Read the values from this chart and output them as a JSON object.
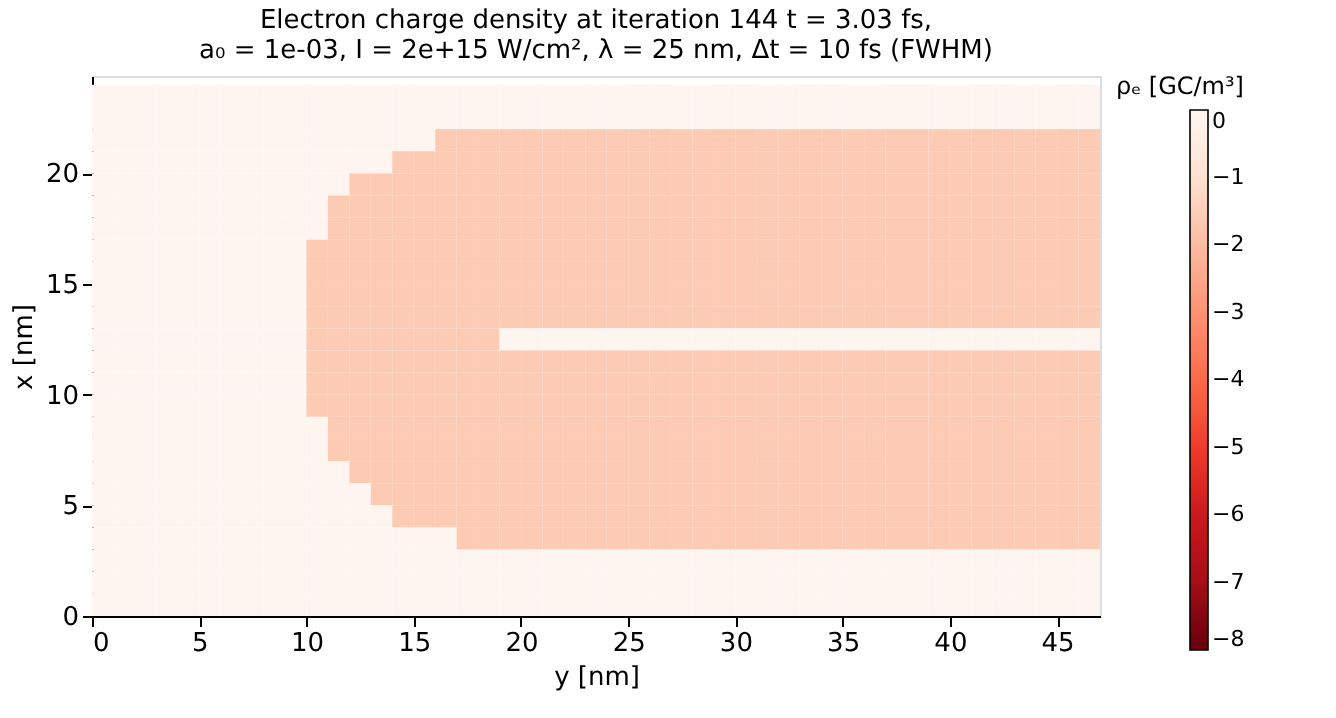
{
  "chart_data": {
    "type": "heatmap",
    "title": "Electron charge density at iteration 144 t = 3.03 fs,",
    "subtitle": "a₀ = 1e-03, I = 2e+15 W/cm², λ = 25 nm, Δt = 10 fs (FWHM)",
    "xlabel": "y [nm]",
    "ylabel": "x [nm]",
    "clabel": "ρₑ [GC/m³]",
    "xlim": [
      0,
      47
    ],
    "ylim": [
      0,
      24.4
    ],
    "xticks": [
      0,
      5,
      10,
      15,
      20,
      25,
      30,
      35,
      40,
      45
    ],
    "yticks": [
      0,
      5,
      10,
      15,
      20
    ],
    "clim": [
      -8,
      0
    ],
    "cticks": [
      -8,
      -7,
      -6,
      -5,
      -4,
      -3,
      -2,
      -1,
      0
    ],
    "grid": false,
    "x": [
      0.5,
      1.5,
      2.5,
      3.5,
      4.5,
      5.5,
      6.5,
      7.5,
      8.5,
      9.5,
      10.5,
      11.5,
      12.5,
      13.5,
      14.5,
      15.5,
      16.5,
      17.5,
      18.5,
      19.5,
      20.5,
      21.5,
      22.5,
      23.5,
      24.5,
      25.5,
      26.5,
      27.5,
      28.5,
      29.5,
      30.5,
      31.5,
      32.5,
      33.5,
      34.5,
      35.5,
      36.5,
      37.5,
      38.5,
      39.5,
      40.5,
      41.5,
      42.5,
      43.5,
      44.5,
      45.5,
      46.5
    ],
    "y": [
      23.5,
      22.5,
      21.5,
      20.5,
      19.5,
      18.5,
      17.5,
      16.5,
      15.5,
      14.5,
      13.5,
      12.5,
      11.5,
      10.5,
      9.5,
      8.5,
      7.5,
      6.5,
      5.5,
      4.5,
      3.5,
      2.5,
      1.5,
      0.5
    ],
    "cells": [
      [
        0,
        0,
        0,
        0,
        0,
        0,
        0,
        0,
        0,
        0,
        0,
        0,
        0,
        0,
        0,
        0,
        0,
        0,
        0,
        0,
        0,
        0,
        0,
        0,
        0,
        0,
        0,
        0,
        0,
        0,
        0,
        0,
        0,
        0,
        0,
        0,
        0,
        0,
        0,
        0,
        0,
        0,
        0,
        0,
        0,
        0,
        0
      ],
      [
        0,
        0,
        0,
        0,
        0,
        0,
        0,
        0,
        0,
        0,
        0,
        0,
        0,
        0,
        0,
        0,
        0,
        0,
        0,
        0,
        0,
        0,
        0,
        0,
        0,
        0,
        0,
        0,
        0,
        0,
        0,
        0,
        0,
        0,
        0,
        0,
        0,
        0,
        0,
        0,
        0,
        0,
        0,
        0,
        0,
        0,
        0
      ],
      [
        0,
        0,
        0,
        0,
        0,
        0,
        0,
        0,
        0,
        0,
        0,
        0,
        0,
        0,
        0,
        0,
        -1.6,
        -1.6,
        -1.6,
        -1.6,
        -1.6,
        -1.6,
        -1.6,
        -1.6,
        -1.6,
        -1.6,
        -1.6,
        -1.6,
        -1.6,
        -1.6,
        -1.6,
        -1.6,
        -1.6,
        -1.6,
        -1.6,
        -1.6,
        -1.6,
        -1.6,
        -1.6,
        -1.6,
        -1.6,
        -1.6,
        -1.6,
        -1.6,
        -1.6,
        -1.6,
        -1.6
      ],
      [
        0,
        0,
        0,
        0,
        0,
        0,
        0,
        0,
        0,
        0,
        0,
        0,
        0,
        0,
        -1.6,
        -1.6,
        -1.6,
        -1.6,
        -1.6,
        -1.6,
        -1.6,
        -1.6,
        -1.6,
        -1.6,
        -1.6,
        -1.6,
        -1.6,
        -1.6,
        -1.6,
        -1.6,
        -1.6,
        -1.6,
        -1.6,
        -1.6,
        -1.6,
        -1.6,
        -1.6,
        -1.6,
        -1.6,
        -1.6,
        -1.6,
        -1.6,
        -1.6,
        -1.6,
        -1.6,
        -1.6,
        -1.6
      ],
      [
        0,
        0,
        0,
        0,
        0,
        0,
        0,
        0,
        0,
        0,
        0,
        0,
        -1.6,
        -1.6,
        -1.6,
        -1.6,
        -1.6,
        -1.6,
        -1.6,
        -1.6,
        -1.6,
        -1.6,
        -1.6,
        -1.6,
        -1.6,
        -1.6,
        -1.6,
        -1.6,
        -1.6,
        -1.6,
        -1.6,
        -1.6,
        -1.6,
        -1.6,
        -1.6,
        -1.6,
        -1.6,
        -1.6,
        -1.6,
        -1.6,
        -1.6,
        -1.6,
        -1.6,
        -1.6,
        -1.6,
        -1.6,
        -1.6
      ],
      [
        0,
        0,
        0,
        0,
        0,
        0,
        0,
        0,
        0,
        0,
        0,
        -1.6,
        -1.6,
        -1.6,
        -1.6,
        -1.6,
        -1.6,
        -1.6,
        -1.6,
        -1.6,
        -1.6,
        -1.6,
        -1.6,
        -1.6,
        -1.6,
        -1.6,
        -1.6,
        -1.6,
        -1.6,
        -1.6,
        -1.6,
        -1.6,
        -1.6,
        -1.6,
        -1.6,
        -1.6,
        -1.6,
        -1.6,
        -1.6,
        -1.6,
        -1.6,
        -1.6,
        -1.6,
        -1.6,
        -1.6,
        -1.6,
        -1.6
      ],
      [
        0,
        0,
        0,
        0,
        0,
        0,
        0,
        0,
        0,
        0,
        0,
        -1.6,
        -1.6,
        -1.6,
        -1.6,
        -1.6,
        -1.6,
        -1.6,
        -1.6,
        -1.6,
        -1.6,
        -1.6,
        -1.6,
        -1.6,
        -1.6,
        -1.6,
        -1.6,
        -1.6,
        -1.6,
        -1.6,
        -1.6,
        -1.6,
        -1.6,
        -1.6,
        -1.6,
        -1.6,
        -1.6,
        -1.6,
        -1.6,
        -1.6,
        -1.6,
        -1.6,
        -1.6,
        -1.6,
        -1.6,
        -1.6,
        -1.6
      ],
      [
        0,
        0,
        0,
        0,
        0,
        0,
        0,
        0,
        0,
        0,
        -1.6,
        -1.6,
        -1.6,
        -1.6,
        -1.6,
        -1.6,
        -1.6,
        -1.6,
        -1.6,
        -1.6,
        -1.6,
        -1.6,
        -1.6,
        -1.6,
        -1.6,
        -1.6,
        -1.6,
        -1.6,
        -1.6,
        -1.6,
        -1.6,
        -1.6,
        -1.6,
        -1.6,
        -1.6,
        -1.6,
        -1.6,
        -1.6,
        -1.6,
        -1.6,
        -1.6,
        -1.6,
        -1.6,
        -1.6,
        -1.6,
        -1.6,
        -1.6
      ],
      [
        0,
        0,
        0,
        0,
        0,
        0,
        0,
        0,
        0,
        0,
        -1.6,
        -1.6,
        -1.6,
        -1.6,
        -1.6,
        -1.6,
        -1.6,
        -1.6,
        -1.6,
        -1.6,
        -1.6,
        -1.6,
        -1.6,
        -1.6,
        -1.6,
        -1.6,
        -1.6,
        -1.6,
        -1.6,
        -1.6,
        -1.6,
        -1.6,
        -1.6,
        -1.6,
        -1.6,
        -1.6,
        -1.6,
        -1.6,
        -1.6,
        -1.6,
        -1.6,
        -1.6,
        -1.6,
        -1.6,
        -1.6,
        -1.6,
        -1.6
      ],
      [
        0,
        0,
        0,
        0,
        0,
        0,
        0,
        0,
        0,
        0,
        -1.6,
        -1.6,
        -1.6,
        -1.6,
        -1.6,
        -1.6,
        -1.6,
        -1.6,
        -1.6,
        -1.6,
        -1.6,
        -1.6,
        -1.6,
        -1.6,
        -1.6,
        -1.6,
        -1.6,
        -1.6,
        -1.6,
        -1.6,
        -1.6,
        -1.6,
        -1.6,
        -1.6,
        -1.6,
        -1.6,
        -1.6,
        -1.6,
        -1.6,
        -1.6,
        -1.6,
        -1.6,
        -1.6,
        -1.6,
        -1.6,
        -1.6,
        -1.6
      ],
      [
        0,
        0,
        0,
        0,
        0,
        0,
        0,
        0,
        0,
        0,
        -1.6,
        -1.6,
        -1.6,
        -1.6,
        -1.6,
        -1.6,
        -1.6,
        -1.6,
        -1.6,
        -1.6,
        -1.6,
        -1.6,
        -1.6,
        -1.6,
        -1.6,
        -1.6,
        -1.6,
        -1.6,
        -1.6,
        -1.6,
        -1.6,
        -1.6,
        -1.6,
        -1.6,
        -1.6,
        -1.6,
        -1.6,
        -1.6,
        -1.6,
        -1.6,
        -1.6,
        -1.6,
        -1.6,
        -1.6,
        -1.6,
        -1.6,
        -1.6
      ],
      [
        0,
        0,
        0,
        0,
        0,
        0,
        0,
        0,
        0,
        0,
        -1.6,
        -1.6,
        -1.6,
        -1.6,
        -1.6,
        -1.6,
        -1.6,
        -1.6,
        -1.6,
        0,
        0,
        0,
        0,
        0,
        0,
        0,
        0,
        0,
        0,
        0,
        0,
        0,
        0,
        0,
        0,
        0,
        0,
        0,
        0,
        0,
        0,
        0,
        0,
        0,
        0,
        0,
        0
      ],
      [
        0,
        0,
        0,
        0,
        0,
        0,
        0,
        0,
        0,
        0,
        -1.6,
        -1.6,
        -1.6,
        -1.6,
        -1.6,
        -1.6,
        -1.6,
        -1.6,
        -1.6,
        -1.6,
        -1.6,
        -1.6,
        -1.6,
        -1.6,
        -1.6,
        -1.6,
        -1.6,
        -1.6,
        -1.6,
        -1.6,
        -1.6,
        -1.6,
        -1.6,
        -1.6,
        -1.6,
        -1.6,
        -1.6,
        -1.6,
        -1.6,
        -1.6,
        -1.6,
        -1.6,
        -1.6,
        -1.6,
        -1.6,
        -1.6,
        -1.6
      ],
      [
        0,
        0,
        0,
        0,
        0,
        0,
        0,
        0,
        0,
        0,
        -1.6,
        -1.6,
        -1.6,
        -1.6,
        -1.6,
        -1.6,
        -1.6,
        -1.6,
        -1.6,
        -1.6,
        -1.6,
        -1.6,
        -1.6,
        -1.6,
        -1.6,
        -1.6,
        -1.6,
        -1.6,
        -1.6,
        -1.6,
        -1.6,
        -1.6,
        -1.6,
        -1.6,
        -1.6,
        -1.6,
        -1.6,
        -1.6,
        -1.6,
        -1.6,
        -1.6,
        -1.6,
        -1.6,
        -1.6,
        -1.6,
        -1.6,
        -1.6
      ],
      [
        0,
        0,
        0,
        0,
        0,
        0,
        0,
        0,
        0,
        0,
        -1.6,
        -1.6,
        -1.6,
        -1.6,
        -1.6,
        -1.6,
        -1.6,
        -1.6,
        -1.6,
        -1.6,
        -1.6,
        -1.6,
        -1.6,
        -1.6,
        -1.6,
        -1.6,
        -1.6,
        -1.6,
        -1.6,
        -1.6,
        -1.6,
        -1.6,
        -1.6,
        -1.6,
        -1.6,
        -1.6,
        -1.6,
        -1.6,
        -1.6,
        -1.6,
        -1.6,
        -1.6,
        -1.6,
        -1.6,
        -1.6,
        -1.6,
        -1.6
      ],
      [
        0,
        0,
        0,
        0,
        0,
        0,
        0,
        0,
        0,
        0,
        0,
        -1.6,
        -1.6,
        -1.6,
        -1.6,
        -1.6,
        -1.6,
        -1.6,
        -1.6,
        -1.6,
        -1.6,
        -1.6,
        -1.6,
        -1.6,
        -1.6,
        -1.6,
        -1.6,
        -1.6,
        -1.6,
        -1.6,
        -1.6,
        -1.6,
        -1.6,
        -1.6,
        -1.6,
        -1.6,
        -1.6,
        -1.6,
        -1.6,
        -1.6,
        -1.6,
        -1.6,
        -1.6,
        -1.6,
        -1.6,
        -1.6,
        -1.6
      ],
      [
        0,
        0,
        0,
        0,
        0,
        0,
        0,
        0,
        0,
        0,
        0,
        -1.6,
        -1.6,
        -1.6,
        -1.6,
        -1.6,
        -1.6,
        -1.6,
        -1.6,
        -1.6,
        -1.6,
        -1.6,
        -1.6,
        -1.6,
        -1.6,
        -1.6,
        -1.6,
        -1.6,
        -1.6,
        -1.6,
        -1.6,
        -1.6,
        -1.6,
        -1.6,
        -1.6,
        -1.6,
        -1.6,
        -1.6,
        -1.6,
        -1.6,
        -1.6,
        -1.6,
        -1.6,
        -1.6,
        -1.6,
        -1.6,
        -1.6
      ],
      [
        0,
        0,
        0,
        0,
        0,
        0,
        0,
        0,
        0,
        0,
        0,
        0,
        -1.6,
        -1.6,
        -1.6,
        -1.6,
        -1.6,
        -1.6,
        -1.6,
        -1.6,
        -1.6,
        -1.6,
        -1.6,
        -1.6,
        -1.6,
        -1.6,
        -1.6,
        -1.6,
        -1.6,
        -1.6,
        -1.6,
        -1.6,
        -1.6,
        -1.6,
        -1.6,
        -1.6,
        -1.6,
        -1.6,
        -1.6,
        -1.6,
        -1.6,
        -1.6,
        -1.6,
        -1.6,
        -1.6,
        -1.6,
        -1.6
      ],
      [
        0,
        0,
        0,
        0,
        0,
        0,
        0,
        0,
        0,
        0,
        0,
        0,
        0,
        -1.6,
        -1.6,
        -1.6,
        -1.6,
        -1.6,
        -1.6,
        -1.6,
        -1.6,
        -1.6,
        -1.6,
        -1.6,
        -1.6,
        -1.6,
        -1.6,
        -1.6,
        -1.6,
        -1.6,
        -1.6,
        -1.6,
        -1.6,
        -1.6,
        -1.6,
        -1.6,
        -1.6,
        -1.6,
        -1.6,
        -1.6,
        -1.6,
        -1.6,
        -1.6,
        -1.6,
        -1.6,
        -1.6,
        -1.6
      ],
      [
        0,
        0,
        0,
        0,
        0,
        0,
        0,
        0,
        0,
        0,
        0,
        0,
        0,
        0,
        -1.6,
        -1.6,
        -1.6,
        -1.6,
        -1.6,
        -1.6,
        -1.6,
        -1.6,
        -1.6,
        -1.6,
        -1.6,
        -1.6,
        -1.6,
        -1.6,
        -1.6,
        -1.6,
        -1.6,
        -1.6,
        -1.6,
        -1.6,
        -1.6,
        -1.6,
        -1.6,
        -1.6,
        -1.6,
        -1.6,
        -1.6,
        -1.6,
        -1.6,
        -1.6,
        -1.6,
        -1.6,
        -1.6
      ],
      [
        0,
        0,
        0,
        0,
        0,
        0,
        0,
        0,
        0,
        0,
        0,
        0,
        0,
        0,
        0,
        0,
        0,
        -1.6,
        -1.6,
        -1.6,
        -1.6,
        -1.6,
        -1.6,
        -1.6,
        -1.6,
        -1.6,
        -1.6,
        -1.6,
        -1.6,
        -1.6,
        -1.6,
        -1.6,
        -1.6,
        -1.6,
        -1.6,
        -1.6,
        -1.6,
        -1.6,
        -1.6,
        -1.6,
        -1.6,
        -1.6,
        -1.6,
        -1.6,
        -1.6,
        -1.6,
        -1.6
      ],
      [
        0,
        0,
        0,
        0,
        0,
        0,
        0,
        0,
        0,
        0,
        0,
        0,
        0,
        0,
        0,
        0,
        0,
        0,
        0,
        0,
        0,
        0,
        0,
        0,
        0,
        0,
        0,
        0,
        0,
        0,
        0,
        0,
        0,
        0,
        0,
        0,
        0,
        0,
        0,
        0,
        0,
        0,
        0,
        0,
        0,
        0,
        0
      ],
      [
        0,
        0,
        0,
        0,
        0,
        0,
        0,
        0,
        0,
        0,
        0,
        0,
        0,
        0,
        0,
        0,
        0,
        0,
        0,
        0,
        0,
        0,
        0,
        0,
        0,
        0,
        0,
        0,
        0,
        0,
        0,
        0,
        0,
        0,
        0,
        0,
        0,
        0,
        0,
        0,
        0,
        0,
        0,
        0,
        0,
        0,
        0
      ],
      [
        0,
        0,
        0,
        0,
        0,
        0,
        0,
        0,
        0,
        0,
        0,
        0,
        0,
        0,
        0,
        0,
        0,
        0,
        0,
        0,
        0,
        0,
        0,
        0,
        0,
        0,
        0,
        0,
        0,
        0,
        0,
        0,
        0,
        0,
        0,
        0,
        0,
        0,
        0,
        0,
        0,
        0,
        0,
        0,
        0,
        0,
        0
      ]
    ]
  }
}
